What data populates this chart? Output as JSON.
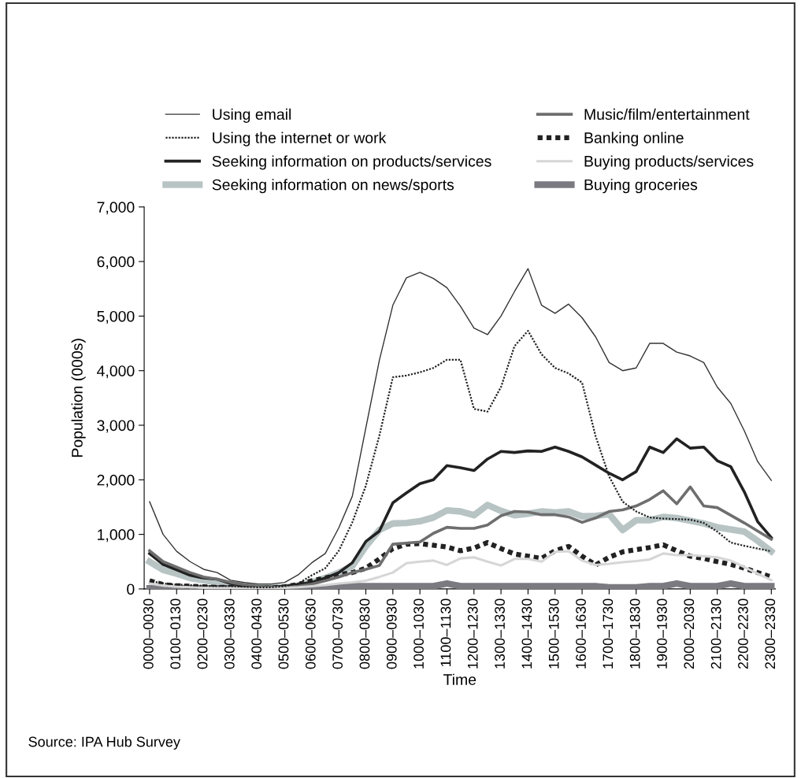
{
  "chart_data": {
    "type": "line",
    "xlabel": "Time",
    "ylabel": "Population (000s)",
    "annotations": [
      "Source: IPA Hub Survey"
    ],
    "categories": [
      "0000–0030",
      null,
      "0100–0130",
      null,
      "0200–0230",
      null,
      "0300–0330",
      null,
      "0400–0430",
      null,
      "0500–0530",
      null,
      "0600–0630",
      null,
      "0700–0730",
      null,
      "0800–0830",
      null,
      "0900–0930",
      null,
      "1000–1030",
      null,
      "1100–1130",
      null,
      "1200–1230",
      null,
      "1300–1330",
      null,
      "1400–1430",
      null,
      "1500–1530",
      null,
      "1600–1630",
      null,
      "1700–1730",
      null,
      "1800–1830",
      null,
      "1900–1930",
      null,
      "2000–2030",
      null,
      "2100–2130",
      null,
      "2200–2230",
      null,
      "2300–2330"
    ],
    "ylim": [
      0,
      7000
    ],
    "yticks": [
      {
        "value": 0,
        "label": "0"
      },
      {
        "value": 1000,
        "label": "1,000"
      },
      {
        "value": 2000,
        "label": "2,000"
      },
      {
        "value": 3000,
        "label": "3,000"
      },
      {
        "value": 4000,
        "label": "4,000"
      },
      {
        "value": 5000,
        "label": "5,000"
      },
      {
        "value": 6000,
        "label": "6,000"
      },
      {
        "value": 7000,
        "label": "7,000"
      }
    ],
    "grid": false,
    "legend": "top",
    "marker": "none",
    "series": [
      {
        "name": "Using email",
        "color": "#333333",
        "line_style": "solid",
        "values": [
          1600,
          1000,
          690,
          500,
          360,
          300,
          160,
          120,
          90,
          90,
          120,
          260,
          480,
          650,
          1120,
          1700,
          2950,
          4190,
          5200,
          5700,
          5800,
          5690,
          5520,
          5180,
          4780,
          4660,
          5000,
          5450,
          5870,
          5200,
          5050,
          5220,
          4970,
          4620,
          4150,
          4000,
          4050,
          4500,
          4500,
          4340,
          4270,
          4150,
          3700,
          3400,
          2900,
          2330,
          1990
        ]
      },
      {
        "name": "Using the internet or work",
        "color": "#222222",
        "line_style": "dotted",
        "values": [
          150,
          100,
          80,
          70,
          60,
          50,
          50,
          40,
          30,
          30,
          50,
          100,
          250,
          380,
          700,
          1220,
          1890,
          2810,
          3880,
          3910,
          3970,
          4050,
          4200,
          4200,
          3300,
          3250,
          3700,
          4450,
          4730,
          4300,
          4050,
          3950,
          3780,
          2800,
          2060,
          1600,
          1420,
          1310,
          1290,
          1280,
          1270,
          1210,
          1050,
          850,
          790,
          740,
          690
        ]
      },
      {
        "name": "Seeking information on products/services",
        "color": "#222222",
        "line_style": "solid",
        "values": [
          650,
          450,
          350,
          250,
          200,
          180,
          100,
          60,
          40,
          30,
          50,
          80,
          120,
          200,
          300,
          480,
          870,
          1060,
          1580,
          1760,
          1930,
          2000,
          2260,
          2220,
          2170,
          2380,
          2520,
          2500,
          2530,
          2520,
          2600,
          2520,
          2420,
          2270,
          2120,
          2000,
          2150,
          2600,
          2500,
          2750,
          2580,
          2600,
          2350,
          2240,
          1780,
          1230,
          940
        ]
      },
      {
        "name": "Seeking information on news/sports",
        "color": "#b8c4c4",
        "line_style": "solid",
        "values": [
          500,
          350,
          280,
          200,
          160,
          120,
          80,
          60,
          40,
          30,
          30,
          60,
          120,
          200,
          300,
          420,
          780,
          1080,
          1200,
          1210,
          1240,
          1310,
          1440,
          1420,
          1350,
          1540,
          1430,
          1350,
          1380,
          1420,
          1400,
          1420,
          1330,
          1340,
          1370,
          1080,
          1260,
          1260,
          1320,
          1300,
          1250,
          1200,
          1130,
          1090,
          1050,
          880,
          690
        ]
      },
      {
        "name": "Music/film/entertainment",
        "color": "#6e6e6e",
        "line_style": "solid",
        "values": [
          700,
          500,
          400,
          300,
          220,
          180,
          120,
          80,
          50,
          30,
          30,
          50,
          90,
          150,
          220,
          300,
          360,
          430,
          820,
          840,
          860,
          1020,
          1130,
          1110,
          1110,
          1170,
          1340,
          1420,
          1410,
          1360,
          1360,
          1320,
          1220,
          1300,
          1420,
          1450,
          1520,
          1640,
          1800,
          1560,
          1870,
          1520,
          1490,
          1350,
          1210,
          1060,
          910
        ]
      },
      {
        "name": "Banking online",
        "color": "#222222",
        "line_style": "dotted",
        "values": [
          150,
          80,
          60,
          50,
          40,
          30,
          30,
          20,
          20,
          20,
          40,
          80,
          150,
          200,
          260,
          300,
          380,
          550,
          740,
          820,
          830,
          800,
          770,
          700,
          750,
          850,
          740,
          640,
          600,
          560,
          700,
          780,
          600,
          440,
          580,
          680,
          720,
          760,
          810,
          700,
          600,
          560,
          500,
          450,
          380,
          300,
          220
        ]
      },
      {
        "name": "Buying products/services",
        "color": "#d6d6d6",
        "line_style": "solid",
        "values": [
          100,
          60,
          40,
          30,
          20,
          20,
          20,
          10,
          10,
          10,
          20,
          30,
          50,
          70,
          100,
          120,
          150,
          220,
          300,
          470,
          500,
          520,
          440,
          560,
          580,
          500,
          430,
          550,
          550,
          500,
          680,
          690,
          520,
          440,
          460,
          490,
          510,
          540,
          650,
          620,
          620,
          600,
          580,
          520,
          400,
          280,
          160
        ]
      },
      {
        "name": "Buying groceries",
        "color": "#7a7a80",
        "line_style": "solid",
        "values": [
          10,
          10,
          10,
          10,
          10,
          10,
          10,
          10,
          10,
          10,
          10,
          10,
          10,
          10,
          50,
          50,
          50,
          50,
          50,
          50,
          50,
          50,
          100,
          50,
          50,
          50,
          50,
          50,
          50,
          50,
          50,
          50,
          50,
          50,
          30,
          30,
          30,
          50,
          50,
          100,
          50,
          50,
          50,
          100,
          50,
          50,
          50
        ]
      }
    ]
  }
}
